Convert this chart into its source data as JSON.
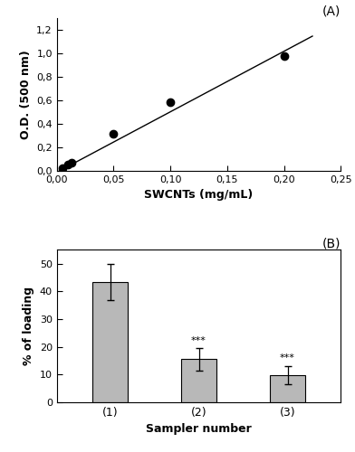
{
  "panel_A": {
    "scatter_x": [
      0.005,
      0.01,
      0.013,
      0.05,
      0.1,
      0.2
    ],
    "scatter_y": [
      0.02,
      0.055,
      0.07,
      0.31,
      0.585,
      0.975
    ],
    "line_slope": 5.16,
    "line_intercept": -0.015,
    "line_x_start": 0.0,
    "line_x_end": 0.225,
    "xlabel": "SWCNTs (mg/mL)",
    "ylabel": "O.D. (500 nm)",
    "xlim": [
      0.0,
      0.25
    ],
    "ylim": [
      0.0,
      1.3
    ],
    "xticks": [
      0.0,
      0.05,
      0.1,
      0.15,
      0.2,
      0.25
    ],
    "yticks": [
      0.0,
      0.2,
      0.4,
      0.6,
      0.8,
      1.0,
      1.2
    ],
    "xtick_labels": [
      "0,00",
      "0,05",
      "0,10",
      "0,15",
      "0,20",
      "0,25"
    ],
    "ytick_labels": [
      "0,0",
      "0,2",
      "0,4",
      "0,6",
      "0,8",
      "1,0",
      "1,2"
    ],
    "label": "(A)",
    "marker_color": "black",
    "marker_size": 6,
    "line_color": "black",
    "line_width": 1.0
  },
  "panel_B": {
    "categories": [
      "(1)",
      "(2)",
      "(3)"
    ],
    "values": [
      43.5,
      15.5,
      9.8
    ],
    "errors": [
      6.5,
      4.0,
      3.2
    ],
    "xlabel": "Sampler number",
    "ylabel": "% of loading",
    "ylim": [
      0,
      55
    ],
    "yticks": [
      0,
      10,
      20,
      30,
      40,
      50
    ],
    "bar_color": "#b8b8b8",
    "bar_edge_color": "black",
    "bar_width": 0.4,
    "error_color": "black",
    "error_capsize": 3,
    "annotations": [
      "",
      "***",
      "***"
    ],
    "annotation_fontsize": 8,
    "label": "(B)"
  },
  "figure": {
    "figsize": [
      3.92,
      5.0
    ],
    "dpi": 100,
    "background_color": "white"
  }
}
